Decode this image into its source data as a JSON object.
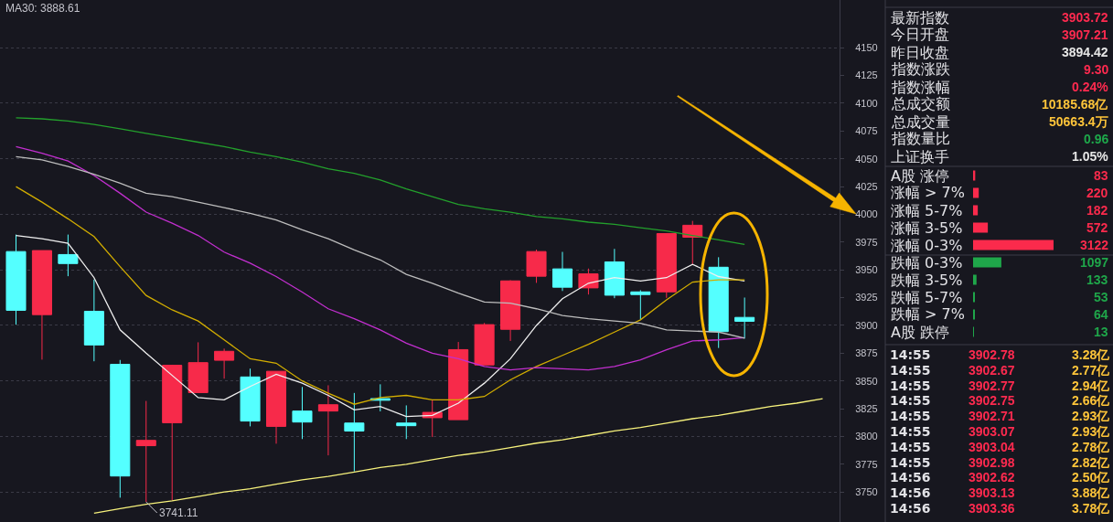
{
  "chart_data": [
    {
      "type": "candlestick",
      "categories": [
        null,
        null,
        null,
        null,
        null,
        null,
        null,
        null,
        null,
        null,
        null,
        null,
        null,
        null,
        null,
        null,
        null,
        null,
        null,
        null,
        null,
        null,
        null,
        null,
        null,
        null,
        null,
        null,
        null,
        null,
        null,
        null
      ],
      "ohlc": [
        [
          3966.5,
          3981.8,
          3900.7,
          3913.6
        ],
        [
          3909.7,
          3967.4,
          3869.2,
          3967.4
        ],
        [
          3963.8,
          3981.8,
          3944.3,
          3955.7
        ],
        [
          3912.7,
          3941.3,
          3867.7,
          3882.4
        ],
        [
          3865.0,
          3868.9,
          3744.9,
          3764.4
        ],
        [
          3791.7,
          3832.0,
          3741.11,
          3796.5
        ],
        [
          3812.4,
          3864.6,
          3742.4,
          3864.1
        ],
        [
          3839.5,
          3884.8,
          3839.5,
          3866.5
        ],
        [
          3868.6,
          3879.1,
          3852.1,
          3876.7
        ],
        [
          3853.6,
          3861.1,
          3809.1,
          3813.9
        ],
        [
          3809.1,
          3858.7,
          3793.5,
          3858.7
        ],
        [
          3822.9,
          3844.6,
          3797.7,
          3813.0
        ],
        [
          3822.9,
          3846.1,
          3783.0,
          3828.6
        ],
        [
          3812.1,
          3839.2,
          3768.6,
          3804.9
        ],
        [
          3834.1,
          3847.0,
          3822.6,
          3832.6
        ],
        [
          3812.1,
          3828.0,
          3797.7,
          3809.7
        ],
        [
          3816.9,
          3832.6,
          3799.5,
          3821.7
        ],
        [
          3815.1,
          3885.1,
          3815.1,
          3878.2
        ],
        [
          3864.4,
          3902.2,
          3864.4,
          3900.7
        ],
        [
          3896.5,
          3940.7,
          3886.0,
          3940.1
        ],
        [
          3944.3,
          3968.3,
          3938.3,
          3966.5
        ],
        [
          3950.9,
          3966.2,
          3931.0,
          3934.4
        ],
        [
          3933.8,
          3951.2,
          3927.8,
          3946.4
        ],
        [
          3957.2,
          3968.9,
          3924.5,
          3927.2
        ],
        [
          3930.2,
          3931.7,
          3905.2,
          3927.8
        ],
        [
          3930.2,
          3982.7,
          3924.8,
          3982.7
        ],
        [
          3979.4,
          3994.1,
          3955.1,
          3990.2
        ],
        [
          3952.4,
          3961.4,
          3879.7,
          3894.42
        ],
        [
          3907.21,
          3925.1,
          3888.1,
          3903.72
        ],
        null,
        null,
        null
      ],
      "colors": [
        "#54ffff",
        "#f72a4a",
        "#54ffff",
        "#54ffff",
        "#54ffff",
        "#f72a4a",
        "#f72a4a",
        "#f72a4a",
        "#f72a4a",
        "#54ffff",
        "#f72a4a",
        "#54ffff",
        "#f72a4a",
        "#54ffff",
        "#54ffff",
        "#54ffff",
        "#f72a4a",
        "#f72a4a",
        "#f72a4a",
        "#f72a4a",
        "#f72a4a",
        "#54ffff",
        "#f72a4a",
        "#54ffff",
        "#54ffff",
        "#f72a4a",
        "#f72a4a",
        "#54ffff",
        "#54ffff",
        null,
        null,
        null
      ],
      "series": [
        {
          "type": "line",
          "color": "#f0f0f0",
          "values": [
            3981,
            3978,
            3974,
            3943,
            3896,
            3875,
            3855,
            3835,
            3833,
            3845,
            3856,
            3848,
            3837,
            3824,
            3827,
            3818,
            3819,
            3830,
            3848,
            3870,
            3900,
            3924,
            3938,
            3943,
            3940,
            3943,
            3955,
            3944,
            3940,
            null,
            null,
            null
          ]
        },
        {
          "type": "line",
          "color": "#d2ad00",
          "values": [
            4025,
            4011,
            3996,
            3980,
            3953,
            3927,
            3914,
            3904,
            3887,
            3870,
            3866,
            3850,
            3839,
            3829,
            3835,
            3837,
            3833,
            3833,
            3836,
            3851,
            3863,
            3873,
            3883,
            3894,
            3905,
            3923,
            3939,
            3941,
            3941,
            null,
            null,
            null
          ]
        },
        {
          "type": "line",
          "color": "#c22fcf",
          "values": [
            4061,
            4055,
            4048,
            4035,
            4019,
            4002,
            3992,
            3981,
            3966,
            3956,
            3944,
            3930,
            3915,
            3906,
            3896,
            3884,
            3875,
            3870,
            3863,
            3860,
            3862,
            3861,
            3860,
            3863,
            3869,
            3878,
            3886,
            3887,
            3889,
            null,
            null,
            null
          ]
        },
        {
          "type": "line",
          "color": "#bdbdbd",
          "values": [
            4052,
            4049,
            4043,
            4036,
            4028,
            4019,
            4016,
            4011,
            4006,
            4001,
            3995,
            3986,
            3978,
            3968,
            3959,
            3946,
            3938,
            3929,
            3921,
            3920,
            3915,
            3909,
            3906,
            3904,
            3902,
            3896,
            3895,
            3894,
            3888.61,
            null,
            null,
            null
          ]
        },
        {
          "type": "line",
          "color": "#23a02c",
          "values": [
            4087,
            4086,
            4084,
            4081,
            4077,
            4073,
            4069,
            4065,
            4061,
            4056,
            4052,
            4047,
            4041,
            4037,
            4031,
            4023,
            4016,
            4009,
            4005,
            4002,
            3998,
            3996,
            3993,
            3991,
            3988,
            3985,
            3981,
            3977,
            3973,
            null,
            null,
            null
          ]
        },
        {
          "type": "line",
          "color": "#f7f27c",
          "values": [
            null,
            null,
            null,
            3731,
            3735,
            3739,
            3742,
            3746,
            3750,
            3753,
            3757,
            3761,
            3764,
            3768,
            3772,
            3775,
            3779,
            3783,
            3786,
            3790,
            3794,
            3797,
            3801,
            3805,
            3808,
            3812,
            3816,
            3819,
            3823,
            3827,
            3830,
            3834
          ]
        }
      ],
      "ylim": [
        3723,
        4193
      ],
      "yticks": [
        3750,
        3775,
        3800,
        3825,
        3850,
        3875,
        3900,
        3925,
        3950,
        3975,
        4000,
        4025,
        4050,
        4075,
        4100,
        4125,
        4150
      ],
      "grid": "y",
      "tick_labels": "y",
      "annotations": [
        "MA30: 3888.61",
        {
          "text": "3741.11",
          "y": 3741.11
        }
      ]
    },
    {
      "type": "other",
      "categories": [
        "最新指数",
        "今日开盘",
        "昨日收盘",
        "指数涨跌",
        "指数涨幅",
        "总成交额",
        "总成交量",
        "指数量比",
        "上证换手"
      ],
      "value_labels": [
        "3903.72",
        "3907.21",
        "3894.42",
        "9.30",
        "0.24%",
        "10185.68亿",
        "50663.4万",
        "0.96",
        "1.05%"
      ],
      "colors": [
        "#ff2a4f",
        "#ff2a4f",
        "#e6e6e6",
        "#ff2a4f",
        "#ff2a4f",
        "#ffc53a",
        "#ffc53a",
        "#1ea84b",
        "#e6e6e6"
      ]
    },
    {
      "type": "bar",
      "orientation": "horizontal",
      "categories": [
        "A股 涨停",
        "涨幅 > 7%",
        "涨幅 5-7%",
        "涨幅 3-5%",
        "涨幅 0-3%",
        "跌幅 0-3%",
        "跌幅 3-5%",
        "跌幅 5-7%",
        "跌幅 > 7%",
        "A股 跌停"
      ],
      "values": [
        83,
        220,
        182,
        572,
        3122,
        1097,
        133,
        53,
        64,
        13
      ],
      "colors": [
        "#fb2a4c",
        "#fb2a4c",
        "#fb2a4c",
        "#fb2a4c",
        "#fb2a4c",
        "#1fa64a",
        "#1fa64a",
        "#1fa64a",
        "#1fa64a",
        "#1fa64a"
      ],
      "data_labels": true
    },
    {
      "type": "other",
      "categories": [
        "14:55",
        "14:55",
        "14:55",
        "14:55",
        "14:55",
        "14:55",
        "14:55",
        "14:55",
        "14:56",
        "14:56",
        "14:56"
      ],
      "series": [
        {
          "color": "#ff2a4f",
          "values": [
            3902.78,
            3902.67,
            3902.77,
            3902.75,
            3902.71,
            3903.07,
            3903.04,
            3902.98,
            3902.62,
            3903.13,
            3903.36
          ],
          "value_labels": [
            "3902.78",
            "3902.67",
            "3902.77",
            "3902.75",
            "3902.71",
            "3903.07",
            "3903.04",
            "3902.98",
            "3902.62",
            "3903.13",
            "3903.36"
          ]
        },
        {
          "color": "#ffc53a",
          "values": [
            3.28,
            2.77,
            2.94,
            2.66,
            2.93,
            2.93,
            2.78,
            2.82,
            2.5,
            3.88,
            3.78
          ],
          "value_labels": [
            "3.28亿",
            "2.77亿",
            "2.94亿",
            "2.66亿",
            "2.93亿",
            "2.93亿",
            "2.78亿",
            "2.82亿",
            "2.50亿",
            "3.88亿",
            "3.78亿"
          ]
        }
      ]
    }
  ]
}
